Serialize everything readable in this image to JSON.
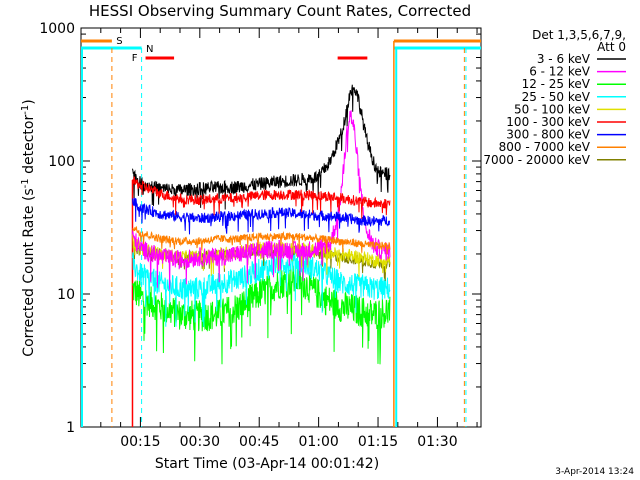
{
  "colors": {
    "background": "#ffffff",
    "axis": "#000000",
    "c3_6": "#000000",
    "c6_12": "#ff00ff",
    "c12_25": "#00ff00",
    "c25_50": "#00ffff",
    "c50_100": "#e0e000",
    "c100_300": "#ff0000",
    "c300_800": "#0000ff",
    "c800_7000": "#ff8000",
    "c7000_20000": "#808000"
  },
  "chart_data": {
    "type": "line",
    "title": "HESSI Observing Summary Count Rates, Corrected",
    "xlabel": "Start Time (03-Apr-14 00:01:42)",
    "ylabel": "Corrected Count Rate (s",
    "ylabel_sup": "-1",
    "ylabel_mid": " detector",
    "ylabel_sup2": "-1",
    "ylabel_end": ")",
    "yscale": "log",
    "ylim": [
      1,
      1000
    ],
    "xlim_minutes": [
      0,
      101
    ],
    "x_tick_labels": [
      {
        "minute": 15,
        "label": "00:15"
      },
      {
        "minute": 30,
        "label": "00:30"
      },
      {
        "minute": 45,
        "label": "00:45"
      },
      {
        "minute": 60,
        "label": "01:00"
      },
      {
        "minute": 75,
        "label": "01:15"
      },
      {
        "minute": 90,
        "label": "01:30"
      }
    ],
    "y_tick_labels": [
      {
        "value": 1,
        "label": "1"
      },
      {
        "value": 10,
        "label": "10"
      },
      {
        "value": 100,
        "label": "100"
      },
      {
        "value": 1000,
        "label": "1000"
      }
    ],
    "legend": {
      "position": "right",
      "header_line1": "Det 1,3,5,6,7,9,",
      "header_line2": "Att 0",
      "entries": [
        {
          "label": "3 - 6 keV",
          "color": "#000000"
        },
        {
          "label": "6 - 12 keV",
          "color": "#ff00ff"
        },
        {
          "label": "12 - 25 keV",
          "color": "#00ff00"
        },
        {
          "label": "25 - 50 keV",
          "color": "#00ffff"
        },
        {
          "label": "50 - 100 keV",
          "color": "#e0e000"
        },
        {
          "label": "100 - 300 keV",
          "color": "#ff0000"
        },
        {
          "label": "300 - 800 keV",
          "color": "#0000ff"
        },
        {
          "label": "800 - 7000 keV",
          "color": "#ff8000"
        },
        {
          "label": "7000 - 20000 keV",
          "color": "#808000"
        }
      ]
    },
    "series": [
      {
        "name": "3 - 6 keV",
        "color": "#000000",
        "x": [
          13,
          15,
          20,
          25,
          30,
          35,
          40,
          45,
          50,
          55,
          60,
          63,
          66,
          68,
          69,
          70,
          72,
          74,
          75,
          76,
          78
        ],
        "y": [
          82,
          68,
          62,
          60,
          62,
          63,
          64,
          67,
          70,
          72,
          76,
          100,
          170,
          330,
          360,
          300,
          150,
          95,
          85,
          80,
          80
        ]
      },
      {
        "name": "6 - 12 keV",
        "color": "#ff00ff",
        "x": [
          13,
          15,
          20,
          25,
          30,
          35,
          40,
          45,
          50,
          55,
          60,
          63,
          65,
          66,
          67,
          68,
          69,
          70,
          71,
          72,
          74,
          76,
          78
        ],
        "y": [
          27,
          22,
          19,
          18,
          19,
          19,
          20,
          21,
          22,
          21,
          22,
          24,
          40,
          70,
          150,
          230,
          170,
          90,
          50,
          30,
          23,
          21,
          21
        ]
      },
      {
        "name": "12 - 25 keV",
        "color": "#00ff00",
        "x": [
          13,
          15,
          20,
          25,
          30,
          35,
          40,
          45,
          50,
          55,
          58,
          62,
          66,
          70,
          74,
          78
        ],
        "y": [
          11,
          9.5,
          8,
          7,
          6.8,
          7,
          8,
          10,
          12,
          13,
          11,
          9,
          8,
          7.5,
          7,
          7.5
        ]
      },
      {
        "name": "25 - 50 keV",
        "color": "#00ffff",
        "x": [
          13,
          15,
          20,
          25,
          30,
          35,
          40,
          45,
          50,
          55,
          58,
          62,
          66,
          70,
          74,
          78
        ],
        "y": [
          17,
          14,
          12,
          11,
          11,
          12,
          13,
          15,
          17,
          18,
          16,
          14,
          12,
          11.5,
          11,
          11
        ]
      },
      {
        "name": "50 - 100 keV",
        "color": "#e0e000",
        "x": [
          13,
          15,
          20,
          25,
          30,
          35,
          40,
          45,
          50,
          55,
          60,
          65,
          70,
          74,
          78
        ],
        "y": [
          25,
          22,
          20,
          19,
          19,
          20,
          21,
          22,
          22,
          22,
          21,
          20,
          19,
          18,
          18
        ]
      },
      {
        "name": "100 - 300 keV",
        "color": "#ff0000",
        "x": [
          13,
          15,
          20,
          25,
          30,
          35,
          40,
          45,
          50,
          55,
          60,
          65,
          70,
          74,
          78
        ],
        "y": [
          70,
          66,
          57,
          52,
          51,
          52,
          53,
          55,
          56,
          56,
          55,
          53,
          50,
          48,
          48
        ]
      },
      {
        "name": "300 - 800 keV",
        "color": "#0000ff",
        "x": [
          13,
          15,
          20,
          25,
          30,
          35,
          40,
          45,
          50,
          55,
          60,
          65,
          70,
          74,
          78
        ],
        "y": [
          50,
          45,
          40,
          38,
          37,
          38,
          39,
          40,
          41,
          40,
          39,
          38,
          36,
          35,
          36
        ]
      },
      {
        "name": "800 - 7000 keV",
        "color": "#ff8000",
        "x": [
          13,
          15,
          20,
          25,
          30,
          35,
          40,
          45,
          50,
          55,
          60,
          65,
          70,
          74,
          78
        ],
        "y": [
          32,
          29,
          26,
          25,
          25,
          26,
          26,
          27,
          27,
          27,
          26,
          25,
          24,
          23,
          23
        ]
      },
      {
        "name": "7000 - 20000 keV",
        "color": "#808000",
        "x": [
          13,
          15,
          20,
          25,
          30,
          35,
          40,
          45,
          50,
          55,
          60,
          65,
          70,
          74,
          78
        ],
        "y": [
          23,
          21,
          20,
          19,
          19,
          20,
          20,
          21,
          21,
          21,
          20,
          19,
          18,
          17,
          17
        ]
      }
    ],
    "annotations": {
      "S": {
        "label": "S",
        "color": "#ff8000"
      },
      "N": {
        "label": "N",
        "color": "#00ffff"
      },
      "F": {
        "label": "F",
        "color": "#ff0000"
      }
    }
  },
  "footer": {
    "timestamp": "3-Apr-2014 13:24"
  }
}
